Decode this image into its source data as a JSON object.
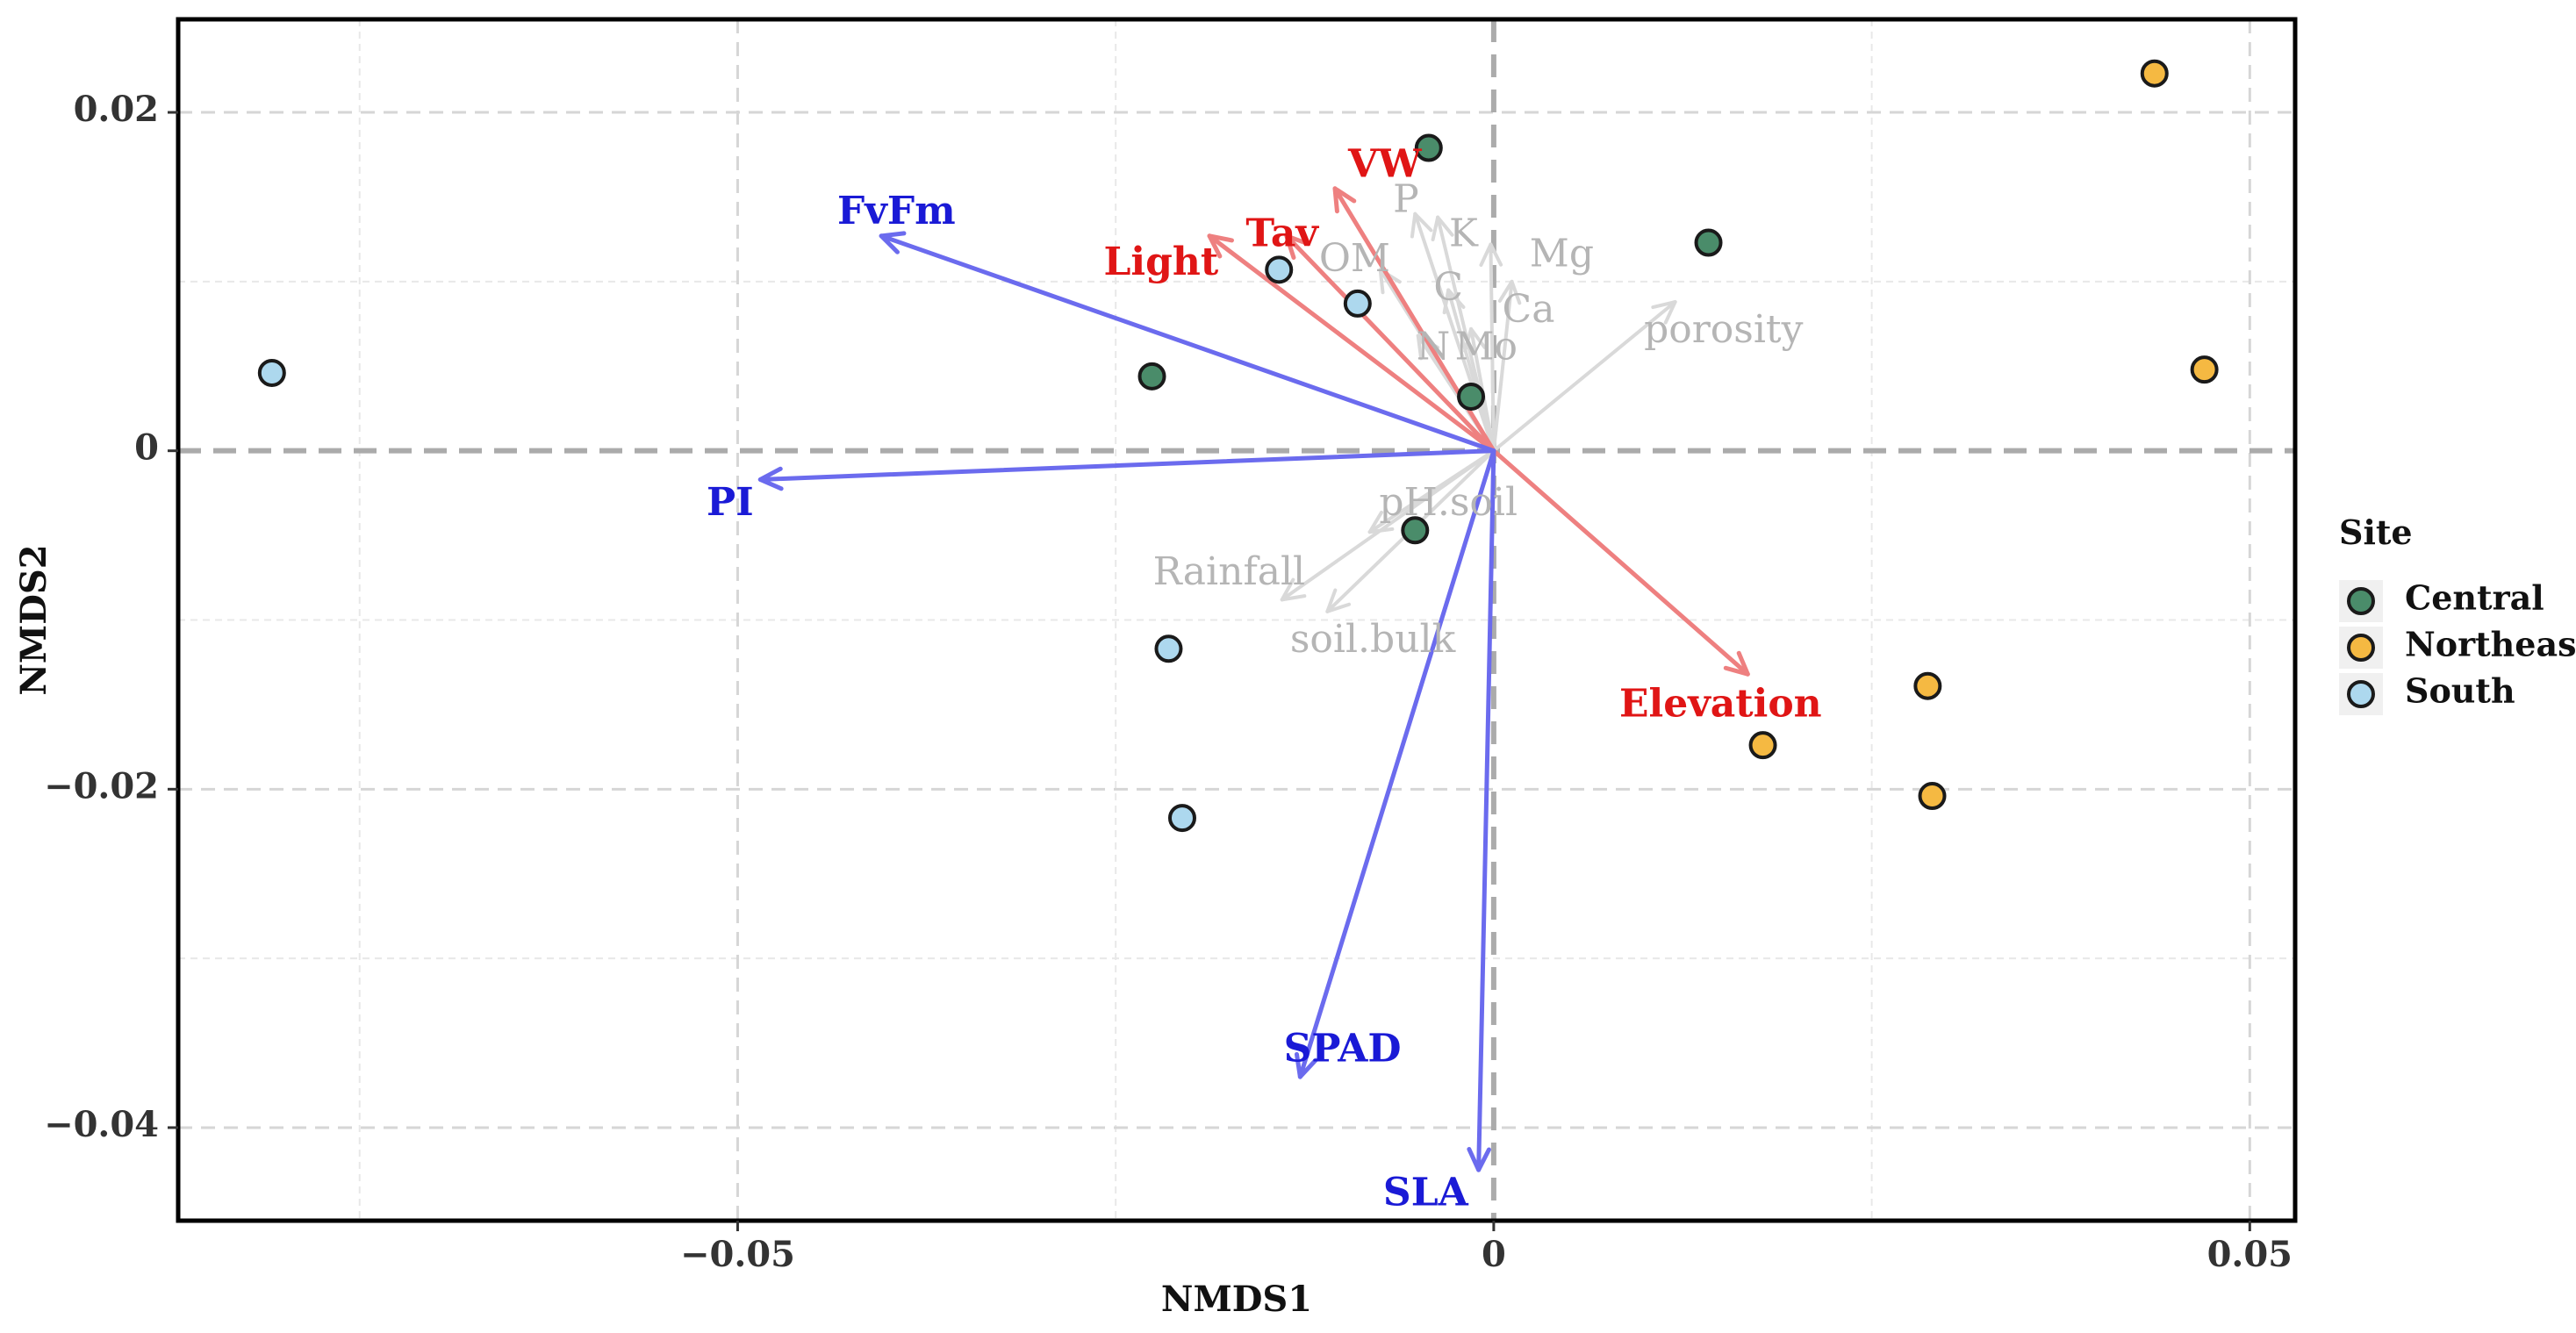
{
  "chart_data": {
    "type": "scatter",
    "subtype": "NMDS ordination biplot with fitted vectors",
    "xlabel": "NMDS1",
    "ylabel": "NMDS2",
    "xlim": [
      -0.087,
      0.053
    ],
    "ylim": [
      -0.0455,
      0.0255
    ],
    "x_ticks": [
      {
        "value": -0.05,
        "label": "−0.05"
      },
      {
        "value": 0,
        "label": "0"
      },
      {
        "value": 0.05,
        "label": "0.05"
      }
    ],
    "y_ticks": [
      {
        "value": 0.02,
        "label": "0.02"
      },
      {
        "value": 0,
        "label": "0"
      },
      {
        "value": -0.02,
        "label": "−0.02"
      },
      {
        "value": -0.04,
        "label": "−0.04"
      }
    ],
    "legend": {
      "title": "Site",
      "position": "right",
      "entries": [
        {
          "name": "Central",
          "color": "#4a8c6a"
        },
        {
          "name": "Northeast",
          "color": "#f5b942"
        },
        {
          "name": "South",
          "color": "#add8ee"
        }
      ]
    },
    "points": [
      {
        "site": "Central",
        "x": -0.0043,
        "y": 0.0179
      },
      {
        "site": "Central",
        "x": 0.0142,
        "y": 0.0123
      },
      {
        "site": "Central",
        "x": -0.0226,
        "y": 0.0044
      },
      {
        "site": "Central",
        "x": -0.0015,
        "y": 0.0032
      },
      {
        "site": "Central",
        "x": -0.0052,
        "y": -0.0047
      },
      {
        "site": "Northeast",
        "x": 0.0437,
        "y": 0.0223
      },
      {
        "site": "Northeast",
        "x": 0.047,
        "y": 0.0048
      },
      {
        "site": "Northeast",
        "x": 0.0287,
        "y": -0.0139
      },
      {
        "site": "Northeast",
        "x": 0.0178,
        "y": -0.0174
      },
      {
        "site": "Northeast",
        "x": 0.029,
        "y": -0.0204
      },
      {
        "site": "South",
        "x": -0.0808,
        "y": 0.0046
      },
      {
        "site": "South",
        "x": -0.0142,
        "y": 0.0107
      },
      {
        "site": "South",
        "x": -0.009,
        "y": 0.0087
      },
      {
        "site": "South",
        "x": -0.0215,
        "y": -0.0117
      },
      {
        "site": "South",
        "x": -0.0206,
        "y": -0.0217
      }
    ],
    "vectors": [
      {
        "name": "FvFm",
        "group": "response",
        "x": -0.0405,
        "y": 0.0127,
        "label_x": -0.0395,
        "label_y": 0.014
      },
      {
        "name": "PI",
        "group": "response",
        "x": -0.0485,
        "y": -0.0017,
        "label_x": -0.0505,
        "label_y": -0.0032
      },
      {
        "name": "SPAD",
        "group": "response",
        "x": -0.0128,
        "y": -0.037,
        "label_x": -0.01,
        "label_y": -0.0355
      },
      {
        "name": "SLA",
        "group": "response",
        "x": -0.001,
        "y": -0.0425,
        "label_x": -0.0045,
        "label_y": -0.044
      },
      {
        "name": "VW",
        "group": "significant",
        "x": -0.0105,
        "y": 0.0155,
        "label_x": -0.0072,
        "label_y": 0.0168
      },
      {
        "name": "Tav",
        "group": "significant",
        "x": -0.0137,
        "y": 0.0127,
        "label_x": -0.014,
        "label_y": 0.0127
      },
      {
        "name": "Light",
        "group": "significant",
        "x": -0.0188,
        "y": 0.0127,
        "label_x": -0.022,
        "label_y": 0.011
      },
      {
        "name": "Elevation",
        "group": "significant",
        "x": 0.0168,
        "y": -0.0132,
        "label_x": 0.015,
        "label_y": -0.0151
      },
      {
        "name": "P",
        "group": "nonsignificant",
        "x": -0.0052,
        "y": 0.014,
        "label_x": -0.0058,
        "label_y": 0.0147
      },
      {
        "name": "K",
        "group": "nonsignificant",
        "x": -0.0037,
        "y": 0.0138,
        "label_x": -0.002,
        "label_y": 0.0127
      },
      {
        "name": "OM",
        "group": "nonsignificant",
        "x": -0.0075,
        "y": 0.0107,
        "label_x": -0.0092,
        "label_y": 0.0112
      },
      {
        "name": "Mg",
        "group": "nonsignificant",
        "x": -0.0002,
        "y": 0.0122,
        "label_x": 0.0045,
        "label_y": 0.0115
      },
      {
        "name": "C",
        "group": "nonsignificant",
        "x": -0.003,
        "y": 0.0095,
        "label_x": -0.003,
        "label_y": 0.0095
      },
      {
        "name": "Ca",
        "group": "nonsignificant",
        "x": 0.0012,
        "y": 0.01,
        "label_x": 0.0023,
        "label_y": 0.0082
      },
      {
        "name": "N",
        "group": "nonsignificant",
        "x": -0.005,
        "y": 0.0068,
        "label_x": -0.004,
        "label_y": 0.006
      },
      {
        "name": "Mo",
        "group": "nonsignificant",
        "x": -0.0015,
        "y": 0.0072,
        "label_x": -0.0005,
        "label_y": 0.006
      },
      {
        "name": "porosity",
        "group": "nonsignificant",
        "x": 0.012,
        "y": 0.0088,
        "label_x": 0.0152,
        "label_y": 0.007
      },
      {
        "name": "pH.soil",
        "group": "nonsignificant",
        "x": -0.0082,
        "y": -0.0048,
        "label_x": -0.003,
        "label_y": -0.0032
      },
      {
        "name": "Rainfall",
        "group": "nonsignificant",
        "x": -0.014,
        "y": -0.0088,
        "label_x": -0.0175,
        "label_y": -0.0073
      },
      {
        "name": "soil.bulk",
        "group": "nonsignificant",
        "x": -0.011,
        "y": -0.0095,
        "label_x": -0.008,
        "label_y": -0.0113
      }
    ],
    "vector_colors": {
      "response": "#6b6bee",
      "response_label": "#1a1ad6",
      "significant": "#ee8080",
      "significant_label": "#e01515",
      "nonsignificant": "#d9d9d9",
      "nonsignificant_label": "#b5b5b5"
    },
    "grid": true,
    "reference_lines": [
      {
        "axis": "x",
        "value": 0
      },
      {
        "axis": "y",
        "value": 0
      }
    ]
  }
}
